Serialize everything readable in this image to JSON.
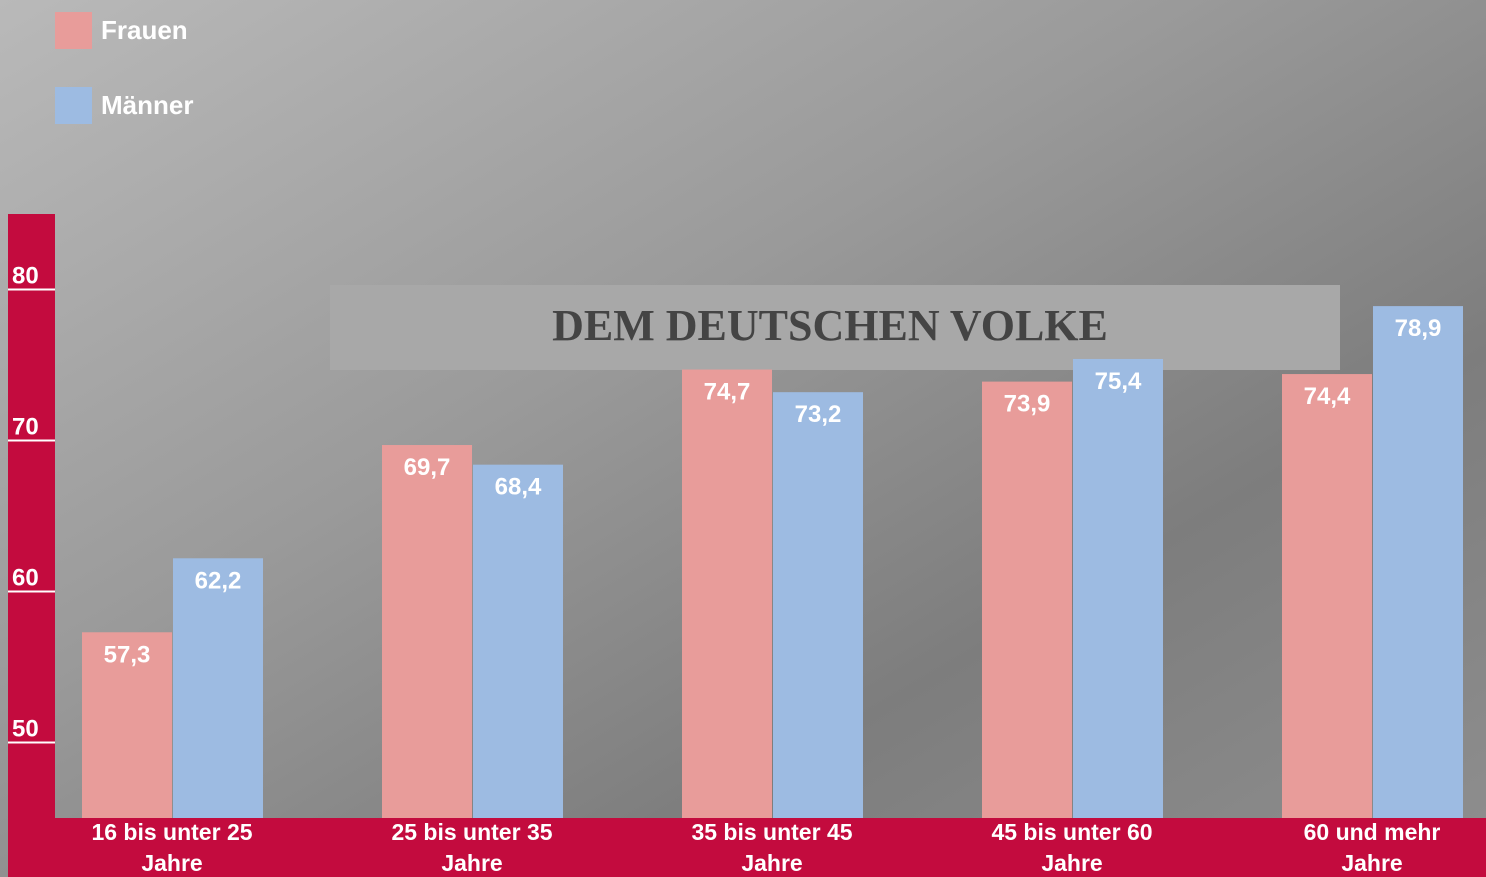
{
  "chart_data": {
    "type": "bar",
    "categories": [
      "16 bis unter 25 Jahre",
      "25 bis unter 35 Jahre",
      "35 bis unter 45 Jahre",
      "45 bis unter 60 Jahre",
      "60 und mehr Jahre"
    ],
    "series": [
      {
        "name": "Frauen",
        "color": "#e89c9a",
        "values": [
          57.3,
          69.7,
          74.7,
          73.9,
          74.4
        ],
        "value_labels": [
          "57,3",
          "69,7",
          "74,7",
          "73,9",
          "74,4"
        ]
      },
      {
        "name": "Männer",
        "color": "#9dbbe2",
        "values": [
          62.2,
          68.4,
          73.2,
          75.4,
          78.9
        ],
        "value_labels": [
          "62,2",
          "68,4",
          "73,2",
          "75,4",
          "78,9"
        ]
      }
    ],
    "ylim": [
      45,
      85
    ],
    "yticks": [
      50,
      60,
      70,
      80
    ],
    "axis_color": "#c30b3e"
  }
}
